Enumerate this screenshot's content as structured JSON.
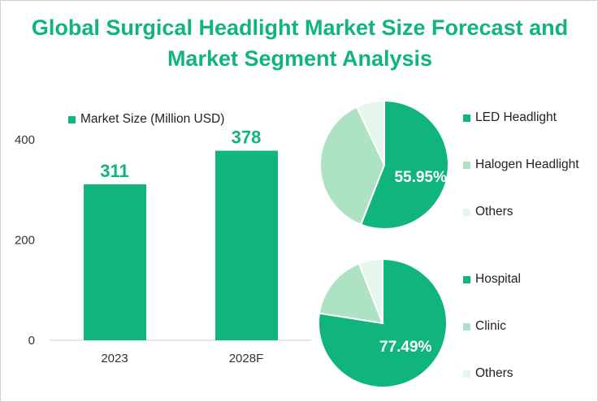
{
  "title": "Global Surgical Headlight Market Size Forecast and Market Segment Analysis",
  "colors": {
    "primary": "#10b47d",
    "secondary": "#ade3c2",
    "tertiary": "#e5f6ec"
  },
  "chart_data": [
    {
      "type": "bar",
      "legend": "Market Size (Million USD)",
      "categories": [
        "2023",
        "2028F"
      ],
      "values": [
        311,
        378
      ],
      "data_labels": [
        "311",
        "378"
      ],
      "ylim": [
        0,
        400
      ],
      "yticks": [
        "0",
        "200",
        "400"
      ],
      "grid": false
    },
    {
      "type": "pie",
      "labels": [
        "LED Headlight",
        "Halogen Headlight",
        "Others"
      ],
      "values": [
        55.95,
        37,
        7.05
      ],
      "data_labels": [
        "55.95%"
      ],
      "legend_position": "right"
    },
    {
      "type": "pie",
      "labels": [
        "Hospital",
        "Clinic",
        "Others"
      ],
      "values": [
        77.49,
        16.5,
        6.01
      ],
      "data_labels": [
        "77.49%"
      ],
      "legend_position": "right"
    }
  ]
}
